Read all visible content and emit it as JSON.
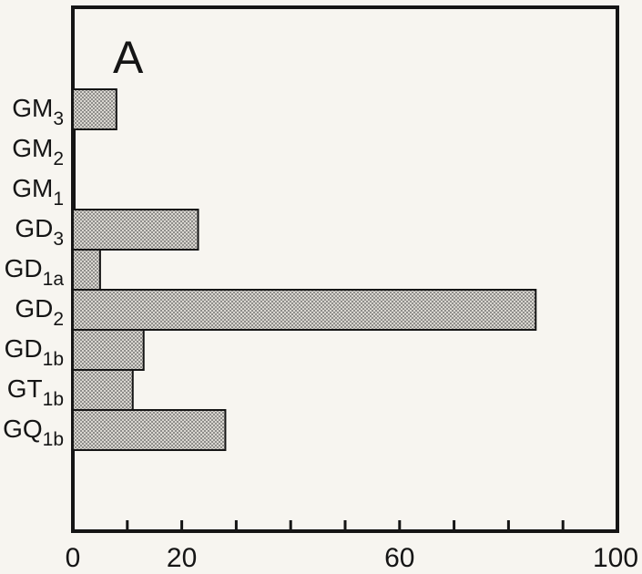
{
  "chart_data": {
    "type": "bar",
    "orientation": "horizontal",
    "panel_label": "A",
    "categories": [
      {
        "base": "GM",
        "sub": "3"
      },
      {
        "base": "GM",
        "sub": "2"
      },
      {
        "base": "GM",
        "sub": "1"
      },
      {
        "base": "GD",
        "sub": "3"
      },
      {
        "base": "GD",
        "sub": "1a"
      },
      {
        "base": "GD",
        "sub": "2"
      },
      {
        "base": "GD",
        "sub": "1b"
      },
      {
        "base": "GT",
        "sub": "1b"
      },
      {
        "base": "GQ",
        "sub": "1b"
      }
    ],
    "values": [
      8,
      0.3,
      0.3,
      23,
      5,
      85,
      13,
      11,
      28
    ],
    "xlim": [
      0,
      100
    ],
    "x_tick_labels": [
      "0",
      "20",
      "60",
      "100"
    ],
    "x_tick_values": [
      0,
      20,
      60,
      100
    ],
    "x_minor_ticks": [
      10,
      20,
      30,
      40,
      50,
      60,
      70,
      80,
      90
    ],
    "xlabel": "",
    "ylabel": "",
    "title": "",
    "grid": false,
    "bar_pattern": "stippled"
  }
}
